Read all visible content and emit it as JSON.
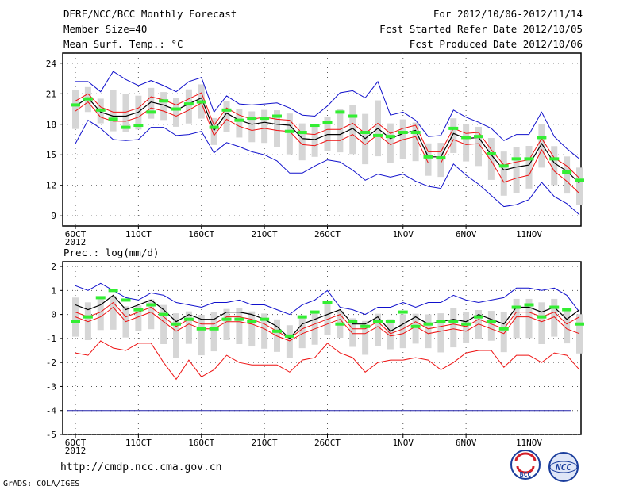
{
  "header": {
    "title": "DERF/NCC/BCC Monthly Forecast",
    "member_size": "Member Size=40",
    "variable": "Mean Surf. Temp.: °C",
    "period": "For 2012/10/06-2012/11/14",
    "fcst_started": "Fcst Started Refer Date 2012/10/05",
    "fcst_produced": "Fcst Produced Date 2012/10/06"
  },
  "footer": {
    "url": "http://cmdp.ncc.cma.gov.cn",
    "grads": "GrADS: COLA/IGES",
    "logo_bcc": "BCC",
    "logo_ncc": "NCC"
  },
  "colors": {
    "mean": "#000000",
    "spread": "#ee1111",
    "extreme": "#1111cc",
    "box": "#d6d6d6",
    "median": "#33ee33",
    "threshold": "#2222aa"
  },
  "chart_data": [
    {
      "type": "line",
      "title": "Mean Surf. Temp.: °C",
      "x_start_date": "2012-10-06",
      "x_tick_labels": [
        "6OCT",
        "11OCT",
        "16OCT",
        "21OCT",
        "26OCT",
        "1NOV",
        "6NOV",
        "11NOV"
      ],
      "x_year_label": "2012",
      "x_tick_days": [
        0,
        5,
        10,
        15,
        20,
        26,
        31,
        36
      ],
      "y_ticks": [
        9,
        12,
        15,
        18,
        21,
        24
      ],
      "ylim": [
        8,
        25
      ],
      "series": [
        {
          "name": "ens_mean",
          "values": [
            19.8,
            20.6,
            19.2,
            18.8,
            18.8,
            19.2,
            20.2,
            19.9,
            19.4,
            20.0,
            20.6,
            17.4,
            19.1,
            18.4,
            18.0,
            18.2,
            18.0,
            17.9,
            16.6,
            16.5,
            17.0,
            17.0,
            17.6,
            16.6,
            17.6,
            16.6,
            17.1,
            17.4,
            14.8,
            14.8,
            17.1,
            16.6,
            16.7,
            15.0,
            13.5,
            13.8,
            14.0,
            16.1,
            14.2,
            13.4,
            12.2
          ]
        },
        {
          "name": "upper_spread",
          "values": [
            20.3,
            21.0,
            19.7,
            19.2,
            19.2,
            19.6,
            20.7,
            20.4,
            19.9,
            20.5,
            21.1,
            17.9,
            19.6,
            18.9,
            18.5,
            18.7,
            18.5,
            18.4,
            17.1,
            17.0,
            17.5,
            17.5,
            18.1,
            17.1,
            18.1,
            17.1,
            17.6,
            17.9,
            15.3,
            15.3,
            17.6,
            17.1,
            17.2,
            15.5,
            14.0,
            14.3,
            14.5,
            16.6,
            14.7,
            13.9,
            12.7
          ]
        },
        {
          "name": "lower_spread",
          "values": [
            19.3,
            20.2,
            18.7,
            18.3,
            18.3,
            18.7,
            19.6,
            19.3,
            18.8,
            19.4,
            20.1,
            16.9,
            18.5,
            17.8,
            17.4,
            17.6,
            17.4,
            17.3,
            16.0,
            15.9,
            16.4,
            16.4,
            17.0,
            16.0,
            17.0,
            16.0,
            16.5,
            16.8,
            14.2,
            14.2,
            16.5,
            16.0,
            16.1,
            14.4,
            12.3,
            12.7,
            13.0,
            15.5,
            13.4,
            12.4,
            11.2
          ]
        },
        {
          "name": "max_member",
          "values": [
            22.2,
            22.2,
            21.2,
            23.2,
            22.4,
            21.8,
            22.3,
            21.8,
            21.2,
            22.2,
            22.6,
            19.2,
            20.8,
            20.0,
            19.9,
            20.0,
            20.1,
            19.6,
            18.9,
            18.8,
            19.8,
            21.1,
            21.3,
            20.6,
            22.2,
            18.9,
            19.2,
            18.4,
            16.8,
            16.9,
            19.4,
            18.7,
            18.2,
            17.6,
            16.4,
            17.0,
            17.0,
            19.2,
            16.8,
            15.6,
            14.6
          ]
        },
        {
          "name": "min_member",
          "values": [
            16.1,
            18.4,
            17.6,
            16.5,
            16.4,
            16.5,
            17.7,
            17.7,
            16.9,
            17.0,
            17.3,
            15.2,
            16.2,
            15.8,
            15.3,
            15.0,
            14.4,
            13.2,
            13.2,
            13.9,
            14.5,
            14.3,
            13.5,
            12.5,
            13.1,
            12.8,
            13.1,
            12.4,
            11.9,
            11.7,
            14.1,
            13.0,
            12.1,
            11.0,
            9.9,
            10.1,
            10.6,
            12.3,
            10.9,
            10.2,
            9.1
          ]
        },
        {
          "name": "median",
          "values": [
            19.9,
            20.5,
            19.4,
            18.5,
            17.7,
            17.9,
            19.2,
            20.3,
            19.5,
            20.0,
            20.2,
            17.7,
            19.4,
            18.4,
            18.6,
            18.6,
            18.8,
            17.3,
            17.2,
            17.9,
            18.2,
            19.2,
            18.8,
            17.2,
            16.9,
            16.8,
            17.2,
            17.2,
            14.8,
            14.7,
            17.6,
            16.7,
            16.8,
            15.1,
            13.9,
            14.6,
            14.6,
            16.7,
            14.6,
            13.3,
            12.5
          ]
        }
      ]
    },
    {
      "type": "line",
      "title": "Prec.: log(mm/d)",
      "x_start_date": "2012-10-06",
      "x_tick_labels": [
        "6OCT",
        "11OCT",
        "16OCT",
        "21OCT",
        "26OCT",
        "1NOV",
        "6NOV",
        "11NOV"
      ],
      "x_year_label": "2012",
      "x_tick_days": [
        0,
        5,
        10,
        15,
        20,
        26,
        31,
        36
      ],
      "y_ticks": [
        -5,
        -4,
        -3,
        -2,
        -1,
        0,
        1,
        2
      ],
      "ylim": [
        -5,
        2.2
      ],
      "threshold": -4,
      "series": [
        {
          "name": "ens_mean",
          "values": [
            0.4,
            0.2,
            0.4,
            0.8,
            0.2,
            0.4,
            0.6,
            0.2,
            -0.3,
            0.0,
            -0.2,
            -0.2,
            0.1,
            0.1,
            0.0,
            -0.2,
            -0.5,
            -1.0,
            -0.4,
            -0.2,
            0.0,
            0.2,
            -0.4,
            -0.4,
            -0.1,
            -0.7,
            -0.4,
            -0.1,
            -0.4,
            -0.3,
            -0.2,
            -0.3,
            0.0,
            -0.2,
            -0.4,
            0.3,
            0.3,
            0.1,
            0.3,
            -0.2,
            0.2
          ]
        },
        {
          "name": "upper_spread",
          "values": [
            0.1,
            -0.1,
            0.1,
            0.5,
            -0.1,
            0.1,
            0.3,
            -0.1,
            -0.5,
            -0.2,
            -0.4,
            -0.4,
            -0.1,
            -0.1,
            -0.2,
            -0.4,
            -0.7,
            -1.0,
            -0.6,
            -0.4,
            -0.2,
            0.0,
            -0.6,
            -0.6,
            -0.3,
            -0.8,
            -0.6,
            -0.3,
            -0.6,
            -0.5,
            -0.4,
            -0.5,
            -0.2,
            -0.4,
            -0.6,
            0.1,
            0.1,
            -0.1,
            0.1,
            -0.4,
            -0.1
          ]
        },
        {
          "name": "lower_spread",
          "values": [
            -0.1,
            -0.3,
            -0.1,
            0.3,
            -0.3,
            -0.1,
            0.1,
            -0.3,
            -0.7,
            -0.4,
            -0.6,
            -0.6,
            -0.3,
            -0.3,
            -0.4,
            -0.6,
            -0.9,
            -1.1,
            -0.8,
            -0.6,
            -0.4,
            -0.2,
            -0.8,
            -0.8,
            -0.5,
            -0.9,
            -0.8,
            -0.5,
            -0.8,
            -0.7,
            -0.6,
            -0.7,
            -0.4,
            -0.6,
            -0.8,
            -0.1,
            -0.1,
            -0.3,
            -0.1,
            -0.6,
            -0.8
          ]
        },
        {
          "name": "max_member",
          "values": [
            1.2,
            1.0,
            1.3,
            1.0,
            0.7,
            0.6,
            0.9,
            0.8,
            0.5,
            0.4,
            0.3,
            0.5,
            0.5,
            0.6,
            0.4,
            0.4,
            0.2,
            0.0,
            0.4,
            0.6,
            1.0,
            0.3,
            0.2,
            0.0,
            0.3,
            0.3,
            0.5,
            0.3,
            0.5,
            0.5,
            0.8,
            0.6,
            0.5,
            0.6,
            0.7,
            1.1,
            1.1,
            1.0,
            1.1,
            0.8,
            0.1
          ]
        },
        {
          "name": "min_member",
          "values": [
            -1.6,
            -1.7,
            -1.1,
            -1.4,
            -1.5,
            -1.2,
            -1.2,
            -2.0,
            -2.7,
            -1.9,
            -2.6,
            -2.3,
            -1.7,
            -2.0,
            -2.1,
            -2.1,
            -2.1,
            -2.4,
            -1.9,
            -1.8,
            -1.2,
            -1.6,
            -1.8,
            -2.4,
            -2.0,
            -1.9,
            -1.9,
            -1.8,
            -1.9,
            -2.3,
            -2.0,
            -1.6,
            -1.5,
            -1.5,
            -2.2,
            -1.7,
            -1.7,
            -2.0,
            -1.6,
            -1.7,
            -2.3
          ]
        },
        {
          "name": "median",
          "values": [
            -0.3,
            -0.1,
            0.7,
            1.0,
            0.6,
            0.2,
            0.4,
            0.0,
            -0.4,
            -0.2,
            -0.6,
            -0.6,
            -0.2,
            -0.2,
            -0.3,
            -0.2,
            -0.7,
            -0.9,
            -0.1,
            0.1,
            0.5,
            -0.4,
            -0.3,
            -0.5,
            -0.3,
            -0.3,
            0.1,
            -0.5,
            -0.4,
            -0.3,
            -0.3,
            -0.4,
            -0.1,
            -0.3,
            -0.6,
            0.3,
            0.4,
            -0.1,
            0.3,
            0.2,
            -0.4
          ]
        }
      ]
    }
  ]
}
